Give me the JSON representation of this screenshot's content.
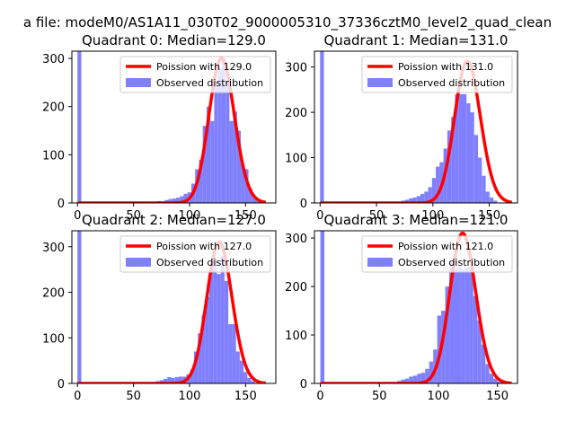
{
  "figure": {
    "suptitle": "a file: modeM0/AS1A11_030T02_9000005310_37336cztM0_level2_quad_clean"
  },
  "colors": {
    "poisson": "#ff0000",
    "observed": "#8080ff",
    "axes": "#000000",
    "background": "#ffffff"
  },
  "chart_data": [
    {
      "type": "bar",
      "title": "Quadrant 0: Median=129.0",
      "xlim": [
        -5,
        177
      ],
      "ylim": [
        0,
        315
      ],
      "xticks": [
        "0",
        "50",
        "100",
        "150"
      ],
      "xtick_values": [
        0,
        50,
        100,
        150
      ],
      "yticks": [
        "0",
        "100",
        "200",
        "300"
      ],
      "ytick_values": [
        0,
        100,
        200,
        300
      ],
      "legend": {
        "placement": "upper right",
        "entries": [
          "Poission with 129.0",
          "Observed distribution"
        ]
      },
      "poisson_mean": 129.0,
      "poisson_scale": 300,
      "poisson_x_range": [
        0,
        168
      ],
      "bins": [
        {
          "x0": 0,
          "x1": 3.4,
          "y": 315
        },
        {
          "x0": 71,
          "x1": 74.4,
          "y": 4
        },
        {
          "x0": 74.4,
          "x1": 77.8,
          "y": 3
        },
        {
          "x0": 77.8,
          "x1": 81.2,
          "y": 6
        },
        {
          "x0": 81.2,
          "x1": 84.6,
          "y": 8
        },
        {
          "x0": 84.6,
          "x1": 88,
          "y": 9
        },
        {
          "x0": 88,
          "x1": 91.4,
          "y": 11
        },
        {
          "x0": 91.4,
          "x1": 94.8,
          "y": 14
        },
        {
          "x0": 94.8,
          "x1": 98.2,
          "y": 19
        },
        {
          "x0": 98.2,
          "x1": 101.6,
          "y": 22
        },
        {
          "x0": 101.6,
          "x1": 105,
          "y": 40
        },
        {
          "x0": 105,
          "x1": 108.4,
          "y": 70
        },
        {
          "x0": 108.4,
          "x1": 111.8,
          "y": 90
        },
        {
          "x0": 111.8,
          "x1": 115.2,
          "y": 160
        },
        {
          "x0": 115.2,
          "x1": 118.6,
          "y": 200
        },
        {
          "x0": 118.6,
          "x1": 122,
          "y": 170
        },
        {
          "x0": 122,
          "x1": 125.4,
          "y": 250
        },
        {
          "x0": 125.4,
          "x1": 128.8,
          "y": 280
        },
        {
          "x0": 128.8,
          "x1": 132.2,
          "y": 300
        },
        {
          "x0": 132.2,
          "x1": 135.6,
          "y": 255
        },
        {
          "x0": 135.6,
          "x1": 139,
          "y": 170
        },
        {
          "x0": 139,
          "x1": 142.4,
          "y": 190
        },
        {
          "x0": 142.4,
          "x1": 145.8,
          "y": 150
        },
        {
          "x0": 145.8,
          "x1": 149.2,
          "y": 80
        },
        {
          "x0": 149.2,
          "x1": 152.6,
          "y": 70
        },
        {
          "x0": 152.6,
          "x1": 156,
          "y": 30
        },
        {
          "x0": 156,
          "x1": 159.4,
          "y": 15
        },
        {
          "x0": 159.4,
          "x1": 162.8,
          "y": 8
        },
        {
          "x0": 162.8,
          "x1": 166.2,
          "y": 3
        }
      ]
    },
    {
      "type": "bar",
      "title": "Quadrant 1: Median=131.0",
      "xlim": [
        -5,
        175
      ],
      "ylim": [
        0,
        335
      ],
      "xticks": [
        "0",
        "50",
        "100",
        "150"
      ],
      "xtick_values": [
        0,
        50,
        100,
        150
      ],
      "yticks": [
        "0",
        "100",
        "200",
        "300"
      ],
      "ytick_values": [
        0,
        100,
        200,
        300
      ],
      "legend": {
        "placement": "upper right",
        "entries": [
          "Poission with 131.0",
          "Observed distribution"
        ]
      },
      "poisson_mean": 131.0,
      "poisson_scale": 313,
      "poisson_x_range": [
        0,
        170
      ],
      "bins": [
        {
          "x0": 0,
          "x1": 3.4,
          "y": 335
        },
        {
          "x0": 72,
          "x1": 75.4,
          "y": 5
        },
        {
          "x0": 75.4,
          "x1": 78.8,
          "y": 7
        },
        {
          "x0": 78.8,
          "x1": 82.2,
          "y": 10
        },
        {
          "x0": 82.2,
          "x1": 85.6,
          "y": 12
        },
        {
          "x0": 85.6,
          "x1": 89,
          "y": 15
        },
        {
          "x0": 89,
          "x1": 92.4,
          "y": 20
        },
        {
          "x0": 92.4,
          "x1": 95.8,
          "y": 25
        },
        {
          "x0": 95.8,
          "x1": 99.2,
          "y": 35
        },
        {
          "x0": 99.2,
          "x1": 102.6,
          "y": 55
        },
        {
          "x0": 102.6,
          "x1": 106,
          "y": 80
        },
        {
          "x0": 106,
          "x1": 109.4,
          "y": 90
        },
        {
          "x0": 109.4,
          "x1": 112.8,
          "y": 120
        },
        {
          "x0": 112.8,
          "x1": 116.2,
          "y": 160
        },
        {
          "x0": 116.2,
          "x1": 119.6,
          "y": 190
        },
        {
          "x0": 119.6,
          "x1": 123,
          "y": 240
        },
        {
          "x0": 123,
          "x1": 126.4,
          "y": 240
        },
        {
          "x0": 126.4,
          "x1": 129.8,
          "y": 240
        },
        {
          "x0": 129.8,
          "x1": 133.2,
          "y": 220
        },
        {
          "x0": 133.2,
          "x1": 136.6,
          "y": 200
        },
        {
          "x0": 136.6,
          "x1": 140,
          "y": 150
        },
        {
          "x0": 140,
          "x1": 143.4,
          "y": 100
        },
        {
          "x0": 143.4,
          "x1": 146.8,
          "y": 60
        },
        {
          "x0": 146.8,
          "x1": 150.2,
          "y": 25
        },
        {
          "x0": 150.2,
          "x1": 153.6,
          "y": 12
        },
        {
          "x0": 153.6,
          "x1": 157,
          "y": 5
        }
      ]
    },
    {
      "type": "bar",
      "title": "Quadrant 2: Median=127.0",
      "xlim": [
        -5,
        177
      ],
      "ylim": [
        0,
        335
      ],
      "xticks": [
        "0",
        "50",
        "100",
        "150"
      ],
      "xtick_values": [
        0,
        50,
        100,
        150
      ],
      "yticks": [
        "0",
        "100",
        "200",
        "300"
      ],
      "ytick_values": [
        0,
        100,
        200,
        300
      ],
      "legend": {
        "placement": "upper right",
        "entries": [
          "Poission with 127.0",
          "Observed distribution"
        ]
      },
      "poisson_mean": 127.0,
      "poisson_scale": 310,
      "poisson_x_range": [
        0,
        168
      ],
      "bins": [
        {
          "x0": 0,
          "x1": 3.4,
          "y": 335
        },
        {
          "x0": 70,
          "x1": 73.4,
          "y": 5
        },
        {
          "x0": 73.4,
          "x1": 76.8,
          "y": 7
        },
        {
          "x0": 76.8,
          "x1": 80.2,
          "y": 10
        },
        {
          "x0": 80.2,
          "x1": 83.6,
          "y": 14
        },
        {
          "x0": 83.6,
          "x1": 87,
          "y": 12
        },
        {
          "x0": 87,
          "x1": 90.4,
          "y": 14
        },
        {
          "x0": 90.4,
          "x1": 93.8,
          "y": 15
        },
        {
          "x0": 93.8,
          "x1": 97.2,
          "y": 15
        },
        {
          "x0": 97.2,
          "x1": 100.6,
          "y": 20
        },
        {
          "x0": 100.6,
          "x1": 104,
          "y": 30
        },
        {
          "x0": 104,
          "x1": 107.4,
          "y": 70
        },
        {
          "x0": 107.4,
          "x1": 110.8,
          "y": 110
        },
        {
          "x0": 110.8,
          "x1": 114.2,
          "y": 150
        },
        {
          "x0": 114.2,
          "x1": 117.6,
          "y": 190
        },
        {
          "x0": 117.6,
          "x1": 121,
          "y": 250
        },
        {
          "x0": 121,
          "x1": 124.4,
          "y": 275
        },
        {
          "x0": 124.4,
          "x1": 127.8,
          "y": 240
        },
        {
          "x0": 127.8,
          "x1": 131.2,
          "y": 280
        },
        {
          "x0": 131.2,
          "x1": 134.6,
          "y": 225
        },
        {
          "x0": 134.6,
          "x1": 138,
          "y": 130
        },
        {
          "x0": 138,
          "x1": 141.4,
          "y": 130
        },
        {
          "x0": 141.4,
          "x1": 144.8,
          "y": 70
        },
        {
          "x0": 144.8,
          "x1": 148.2,
          "y": 50
        },
        {
          "x0": 148.2,
          "x1": 151.6,
          "y": 25
        },
        {
          "x0": 151.6,
          "x1": 155,
          "y": 12
        },
        {
          "x0": 155,
          "x1": 158.4,
          "y": 5
        }
      ]
    },
    {
      "type": "bar",
      "title": "Quadrant 3: Median=121.0",
      "xlim": [
        -5,
        167
      ],
      "ylim": [
        0,
        315
      ],
      "xticks": [
        "0",
        "50",
        "100",
        "150"
      ],
      "xtick_values": [
        0,
        50,
        100,
        150
      ],
      "yticks": [
        "0",
        "100",
        "200",
        "300"
      ],
      "ytick_values": [
        0,
        100,
        200,
        300
      ],
      "legend": {
        "placement": "upper right",
        "entries": [
          "Poission with 121.0",
          "Observed distribution"
        ]
      },
      "poisson_mean": 121.0,
      "poisson_scale": 310,
      "poisson_x_range": [
        0,
        162
      ],
      "bins": [
        {
          "x0": 0,
          "x1": 3.4,
          "y": 315
        },
        {
          "x0": 65,
          "x1": 68.4,
          "y": 5
        },
        {
          "x0": 68.4,
          "x1": 71.8,
          "y": 8
        },
        {
          "x0": 71.8,
          "x1": 75.2,
          "y": 10
        },
        {
          "x0": 75.2,
          "x1": 78.6,
          "y": 14
        },
        {
          "x0": 78.6,
          "x1": 82,
          "y": 16
        },
        {
          "x0": 82,
          "x1": 85.4,
          "y": 20
        },
        {
          "x0": 85.4,
          "x1": 88.8,
          "y": 22
        },
        {
          "x0": 88.8,
          "x1": 92.2,
          "y": 30
        },
        {
          "x0": 92.2,
          "x1": 95.6,
          "y": 45
        },
        {
          "x0": 95.6,
          "x1": 99,
          "y": 70
        },
        {
          "x0": 99,
          "x1": 102.4,
          "y": 140
        },
        {
          "x0": 102.4,
          "x1": 105.8,
          "y": 150
        },
        {
          "x0": 105.8,
          "x1": 109.2,
          "y": 200
        },
        {
          "x0": 109.2,
          "x1": 112.6,
          "y": 250
        },
        {
          "x0": 112.6,
          "x1": 116,
          "y": 235
        },
        {
          "x0": 116,
          "x1": 119.4,
          "y": 240
        },
        {
          "x0": 119.4,
          "x1": 122.8,
          "y": 235
        },
        {
          "x0": 122.8,
          "x1": 126.2,
          "y": 240
        },
        {
          "x0": 126.2,
          "x1": 129.6,
          "y": 240
        },
        {
          "x0": 129.6,
          "x1": 133,
          "y": 180
        },
        {
          "x0": 133,
          "x1": 136.4,
          "y": 130
        },
        {
          "x0": 136.4,
          "x1": 139.8,
          "y": 80
        },
        {
          "x0": 139.8,
          "x1": 143.2,
          "y": 40
        },
        {
          "x0": 143.2,
          "x1": 146.6,
          "y": 20
        },
        {
          "x0": 146.6,
          "x1": 150,
          "y": 10
        },
        {
          "x0": 150,
          "x1": 153.4,
          "y": 4
        }
      ]
    }
  ]
}
